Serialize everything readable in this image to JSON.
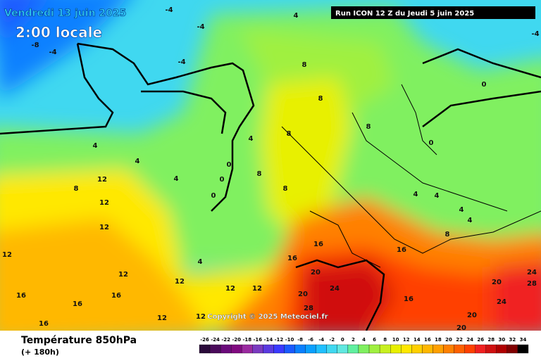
{
  "header": {
    "date": "Vendredi 13 juin 2025",
    "time": "2:00 locale",
    "run": "Run ICON 12 Z du Jeudi 5 juin 2025"
  },
  "copyright": "Copyright © 2025 Meteociel.fr",
  "footer": {
    "title": "Température 850hPa",
    "lead": "(+ 180h)"
  },
  "scale": {
    "labels": [
      -26,
      -24,
      -22,
      -20,
      -18,
      -16,
      -14,
      -12,
      -10,
      -8,
      -6,
      -4,
      -2,
      0,
      2,
      4,
      6,
      8,
      10,
      12,
      14,
      16,
      18,
      20,
      22,
      24,
      26,
      28,
      30,
      32,
      34
    ],
    "colors": [
      "#2a0a3a",
      "#4a0a5a",
      "#6a0a7a",
      "#800a80",
      "#9a2aa0",
      "#7a3ac0",
      "#5a3ae0",
      "#3a3aff",
      "#1a5aff",
      "#0a80ff",
      "#0aa0ff",
      "#20c0ff",
      "#40d8f0",
      "#60e8e0",
      "#60f0a0",
      "#80f060",
      "#a0f040",
      "#c8f020",
      "#e8f000",
      "#ffe800",
      "#ffd000",
      "#ffb800",
      "#ffa000",
      "#ff8000",
      "#ff6000",
      "#ff4000",
      "#f02020",
      "#d01010",
      "#b00000",
      "#800000",
      "#000000"
    ]
  },
  "contour_labels": [
    -4,
    -4,
    -4,
    -8,
    -4,
    4,
    8,
    8,
    8,
    8,
    4,
    8,
    8,
    4,
    4,
    4,
    8,
    12,
    12,
    12,
    12,
    12,
    12,
    12,
    12,
    16,
    16,
    16,
    16,
    16,
    16,
    16,
    12,
    12,
    20,
    24,
    20,
    28,
    16,
    20,
    24,
    28,
    24,
    20,
    20,
    4,
    4,
    4,
    4,
    8,
    0,
    0,
    0,
    0,
    0,
    4,
    -4
  ]
}
